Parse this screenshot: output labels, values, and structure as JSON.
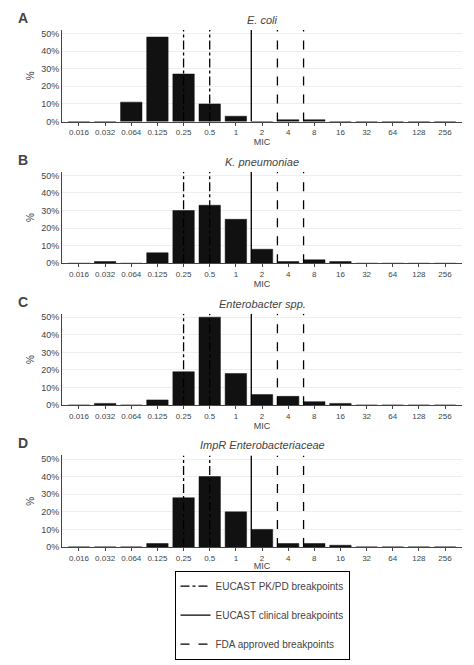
{
  "chart_data": [
    {
      "type": "bar",
      "title": "E. coli",
      "annotations": [
        "A"
      ],
      "xlabel": "MIC",
      "ylabel": "%",
      "categories": [
        "0.016",
        "0.032",
        "0.064",
        "0.125",
        "0.25",
        "0.5",
        "1",
        "2",
        "4",
        "8",
        "16",
        "32",
        "64",
        "128",
        "256"
      ],
      "values": [
        0,
        0,
        11,
        48,
        27,
        10,
        3,
        0,
        1,
        1,
        0,
        0,
        0,
        0,
        0
      ],
      "color": "#111111",
      "ylim": [
        0,
        52
      ],
      "yticks": [
        {
          "value": 0,
          "label": "0%"
        },
        {
          "value": 10,
          "label": "10%"
        },
        {
          "value": 20,
          "label": "20%"
        },
        {
          "value": 30,
          "label": "30%"
        },
        {
          "value": 40,
          "label": "40%"
        },
        {
          "value": 50,
          "label": "50%"
        }
      ],
      "grid": true,
      "legend": "bottom",
      "lines": [
        {
          "name": "EUCAST PK/PD breakpoints",
          "line_style": "dashdot",
          "color": "#000000",
          "at": [
            "0.25",
            "0.5"
          ]
        },
        {
          "name": "EUCAST clinical breakpoints",
          "line_style": "solid",
          "color": "#000000",
          "before": [
            "2"
          ]
        },
        {
          "name": "FDA approved breakpoints",
          "line_style": "dashed",
          "color": "#000000",
          "before": [
            "4",
            "8"
          ]
        }
      ]
    },
    {
      "type": "bar",
      "title": "K. pneumoniae",
      "annotations": [
        "B"
      ],
      "xlabel": "MIC",
      "ylabel": "%",
      "categories": [
        "0.016",
        "0.032",
        "0.064",
        "0.125",
        "0.25",
        "0.5",
        "1",
        "2",
        "4",
        "8",
        "16",
        "32",
        "64",
        "128",
        "256"
      ],
      "values": [
        0,
        1,
        0,
        6,
        30,
        33,
        25,
        8,
        1,
        2,
        1,
        0,
        0,
        0,
        0
      ],
      "color": "#111111",
      "ylim": [
        0,
        52
      ],
      "yticks": [
        {
          "value": 0,
          "label": "0%"
        },
        {
          "value": 10,
          "label": "10%"
        },
        {
          "value": 20,
          "label": "20%"
        },
        {
          "value": 30,
          "label": "30%"
        },
        {
          "value": 40,
          "label": "40%"
        },
        {
          "value": 50,
          "label": "50%"
        }
      ],
      "grid": true,
      "lines": [
        {
          "name": "EUCAST PK/PD breakpoints",
          "line_style": "dashdot",
          "color": "#000000",
          "at": [
            "0.25",
            "0.5"
          ]
        },
        {
          "name": "EUCAST clinical breakpoints",
          "line_style": "solid",
          "color": "#000000",
          "before": [
            "2"
          ]
        },
        {
          "name": "FDA approved breakpoints",
          "line_style": "dashed",
          "color": "#000000",
          "before": [
            "4",
            "8"
          ]
        }
      ]
    },
    {
      "type": "bar",
      "title": "Enterobacter spp.",
      "annotations": [
        "C"
      ],
      "xlabel": "MIC",
      "ylabel": "%",
      "categories": [
        "0.016",
        "0.032",
        "0.064",
        "0.125",
        "0.25",
        "0.5",
        "1",
        "2",
        "4",
        "8",
        "16",
        "32",
        "64",
        "128",
        "256"
      ],
      "values": [
        0,
        1,
        0,
        3,
        19,
        50,
        18,
        6,
        5,
        2,
        1,
        0,
        0,
        0,
        0
      ],
      "color": "#111111",
      "ylim": [
        0,
        52
      ],
      "yticks": [
        {
          "value": 0,
          "label": "0%"
        },
        {
          "value": 10,
          "label": "10%"
        },
        {
          "value": 20,
          "label": "20%"
        },
        {
          "value": 30,
          "label": "30%"
        },
        {
          "value": 40,
          "label": "40%"
        },
        {
          "value": 50,
          "label": "50%"
        }
      ],
      "grid": true,
      "lines": [
        {
          "name": "EUCAST PK/PD breakpoints",
          "line_style": "dashdot",
          "color": "#000000",
          "at": [
            "0.25",
            "0.5"
          ]
        },
        {
          "name": "EUCAST clinical breakpoints",
          "line_style": "solid",
          "color": "#000000",
          "before": [
            "2"
          ]
        },
        {
          "name": "FDA approved breakpoints",
          "line_style": "dashed",
          "color": "#000000",
          "before": [
            "4",
            "8"
          ]
        }
      ]
    },
    {
      "type": "bar",
      "title": "ImpR Enterobacteriaceae",
      "annotations": [
        "D"
      ],
      "xlabel": "MIC",
      "ylabel": "%",
      "categories": [
        "0.016",
        "0.032",
        "0.064",
        "0.125",
        "0.25",
        "0.5",
        "1",
        "2",
        "4",
        "8",
        "16",
        "32",
        "64",
        "128",
        "256"
      ],
      "values": [
        0,
        0,
        0,
        2,
        28,
        40,
        20,
        10,
        2,
        2,
        1,
        0,
        0,
        0,
        0
      ],
      "color": "#111111",
      "ylim": [
        0,
        52
      ],
      "yticks": [
        {
          "value": 0,
          "label": "0%"
        },
        {
          "value": 10,
          "label": "10%"
        },
        {
          "value": 20,
          "label": "20%"
        },
        {
          "value": 30,
          "label": "30%"
        },
        {
          "value": 40,
          "label": "40%"
        },
        {
          "value": 50,
          "label": "50%"
        }
      ],
      "grid": true,
      "lines": [
        {
          "name": "EUCAST PK/PD breakpoints",
          "line_style": "dashdot",
          "color": "#000000",
          "at": [
            "0.25",
            "0.5"
          ]
        },
        {
          "name": "EUCAST clinical breakpoints",
          "line_style": "solid",
          "color": "#000000",
          "before": [
            "2"
          ]
        },
        {
          "name": "FDA approved breakpoints",
          "line_style": "dashed",
          "color": "#000000",
          "before": [
            "4",
            "8"
          ]
        }
      ]
    }
  ]
}
